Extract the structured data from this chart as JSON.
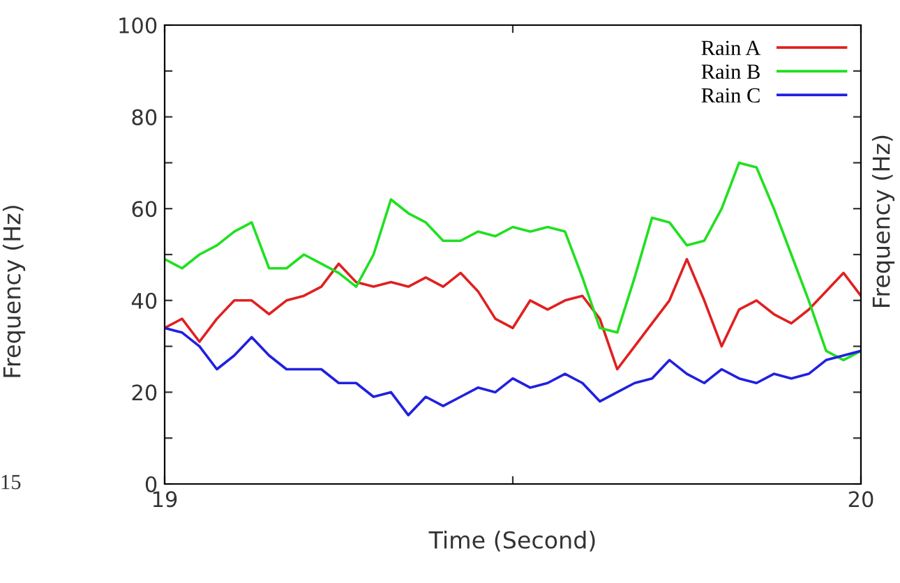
{
  "chart_data": {
    "type": "line",
    "xlabel": "Time (Second)",
    "ylabel": "Frequency (Hz)",
    "x": [
      19.0,
      19.025,
      19.05,
      19.075,
      19.1,
      19.125,
      19.15,
      19.175,
      19.2,
      19.225,
      19.25,
      19.275,
      19.3,
      19.325,
      19.35,
      19.375,
      19.4,
      19.425,
      19.45,
      19.475,
      19.5,
      19.525,
      19.55,
      19.575,
      19.6,
      19.625,
      19.65,
      19.675,
      19.7,
      19.725,
      19.75,
      19.775,
      19.8,
      19.825,
      19.85,
      19.875,
      19.9,
      19.925,
      19.95,
      19.975,
      20.0
    ],
    "series": [
      {
        "name": "Rain A",
        "color": "#e02020",
        "values": [
          34,
          36,
          31,
          36,
          40,
          40,
          37,
          40,
          41,
          43,
          48,
          44,
          43,
          44,
          43,
          45,
          43,
          46,
          42,
          36,
          34,
          40,
          38,
          40,
          41,
          36,
          25,
          30,
          35,
          40,
          49,
          40,
          30,
          38,
          40,
          37,
          35,
          38,
          42,
          46,
          41
        ]
      },
      {
        "name": "Rain B",
        "color": "#20e020",
        "values": [
          49,
          47,
          50,
          52,
          55,
          57,
          47,
          47,
          50,
          48,
          46,
          43,
          50,
          62,
          59,
          57,
          53,
          53,
          55,
          54,
          56,
          55,
          56,
          55,
          45,
          34,
          33,
          45,
          58,
          57,
          52,
          53,
          60,
          70,
          69,
          60,
          50,
          40,
          29,
          27,
          29
        ]
      },
      {
        "name": "Rain C",
        "color": "#2020e0",
        "values": [
          34,
          33,
          30,
          25,
          28,
          32,
          28,
          25,
          25,
          25,
          22,
          22,
          19,
          20,
          15,
          19,
          17,
          19,
          21,
          20,
          23,
          21,
          22,
          24,
          22,
          18,
          20,
          22,
          23,
          27,
          24,
          22,
          25,
          23,
          22,
          24,
          23,
          24,
          27,
          28,
          29
        ]
      }
    ],
    "xlim": [
      19,
      20
    ],
    "xticks": [
      19,
      {
        "value": 19.5,
        "label": null
      },
      20
    ],
    "ylim": [
      0,
      100
    ],
    "yticks": [
      0,
      {
        "value": 10,
        "label": null
      },
      20,
      {
        "value": 30,
        "label": null
      },
      40,
      {
        "value": 50,
        "label": null
      },
      60,
      {
        "value": 70,
        "label": null
      },
      80,
      {
        "value": 90,
        "label": null
      },
      100
    ],
    "grid": false,
    "legend": "top right",
    "marker": "none",
    "line_style": "solid",
    "annotations": [
      "15",
      "Frequency (Hz)"
    ]
  }
}
